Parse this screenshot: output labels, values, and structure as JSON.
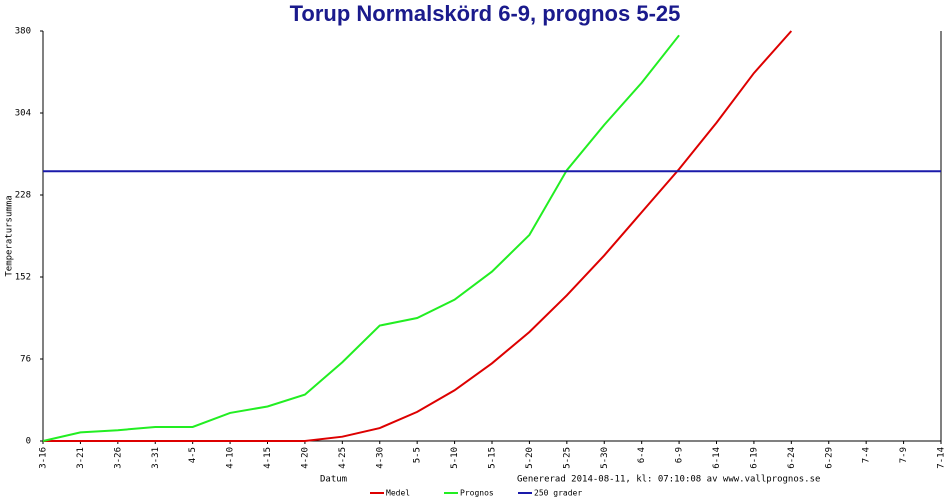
{
  "chart_data": {
    "type": "line",
    "title": "Torup Normalskörd 6-9, prognos 5-25",
    "y_label": "Temperatursumma",
    "x_label": "Datum",
    "footer": "Genererad 2014-08-11, kl: 07:10:08 av www.vallprognos.se",
    "categories": [
      "3-16",
      "3-21",
      "3-26",
      "3-31",
      "4-5",
      "4-10",
      "4-15",
      "4-20",
      "4-25",
      "4-30",
      "5-5",
      "5-10",
      "5-15",
      "5-20",
      "5-25",
      "5-30",
      "6-4",
      "6-9",
      "6-14",
      "6-19",
      "6-24",
      "6-29",
      "7-4",
      "7-9",
      "7-14"
    ],
    "series": [
      {
        "name": "Medel",
        "color": "#dd0000",
        "values": [
          0,
          0,
          0,
          0,
          0,
          0,
          0,
          0,
          4,
          12,
          27,
          47,
          72,
          101,
          135,
          172,
          212,
          252,
          295,
          341,
          380,
          null,
          null,
          null,
          null
        ]
      },
      {
        "name": "Prognos",
        "color": "#22ee22",
        "values": [
          0,
          8,
          10,
          13,
          13,
          26,
          32,
          43,
          73,
          107,
          114,
          131,
          157,
          191,
          251,
          293,
          332,
          376,
          null,
          null,
          null,
          null,
          null,
          null,
          null
        ]
      },
      {
        "name": "250 grader",
        "color": "#1a1aaa",
        "values": [
          250,
          250,
          250,
          250,
          250,
          250,
          250,
          250,
          250,
          250,
          250,
          250,
          250,
          250,
          250,
          250,
          250,
          250,
          250,
          250,
          250,
          250,
          250,
          250,
          250
        ]
      }
    ],
    "ylim": [
      0,
      380
    ],
    "yticks": [
      0,
      76,
      152,
      228,
      304,
      380
    ]
  }
}
